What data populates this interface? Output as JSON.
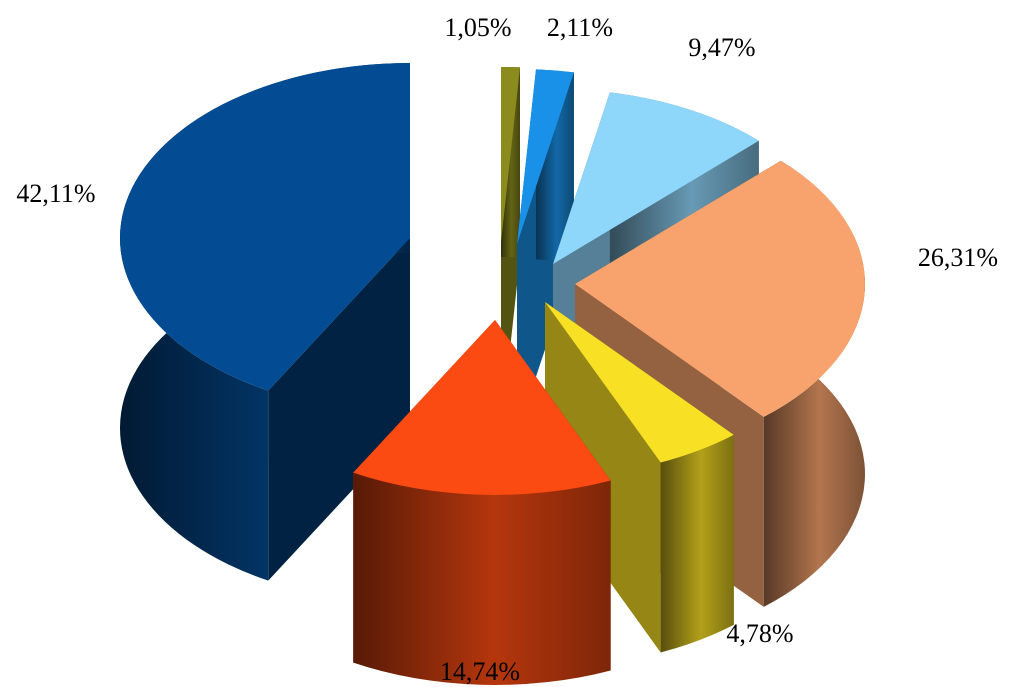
{
  "chart_data": {
    "type": "pie",
    "title": "",
    "slices": [
      {
        "label": "1,05%",
        "value": 1.05,
        "color": "#8b8b1e"
      },
      {
        "label": "2,11%",
        "value": 2.11,
        "color": "#1991e8"
      },
      {
        "label": "9,47%",
        "value": 9.47,
        "color": "#8fd6fb"
      },
      {
        "label": "26,31%",
        "value": 26.31,
        "color": "#f8a36d"
      },
      {
        "label": "4,78%",
        "value": 4.78,
        "color": "#f8e024"
      },
      {
        "label": "14,74%",
        "value": 14.74,
        "color": "#fb4b12"
      },
      {
        "label": "42,11%",
        "value": 42.11,
        "color": "#034b92"
      }
    ],
    "legend": "none",
    "style": "3d-exploded"
  }
}
